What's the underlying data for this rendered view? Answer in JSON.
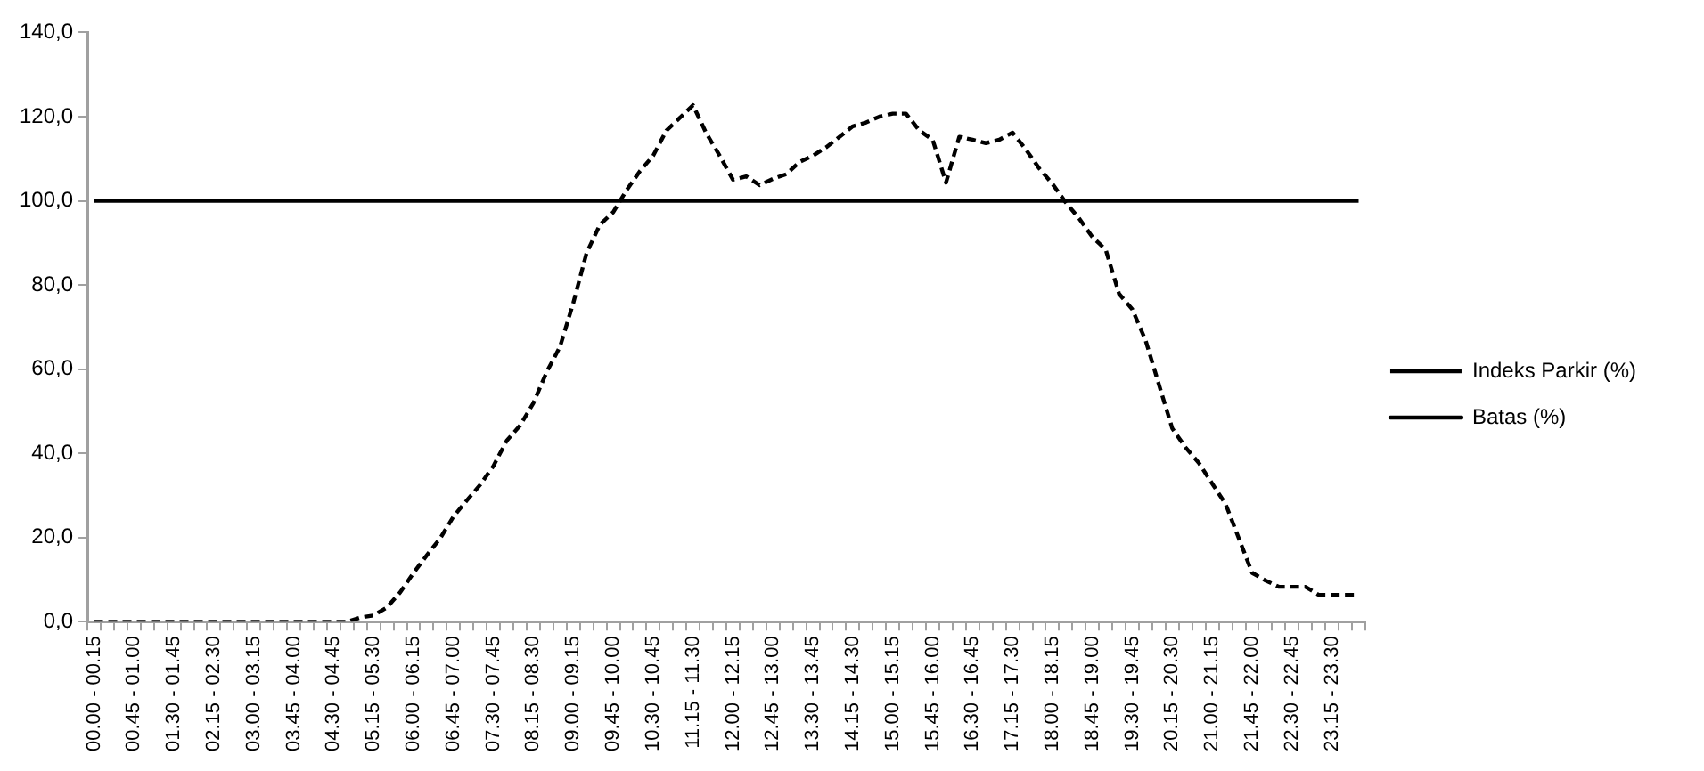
{
  "chart_data": {
    "type": "line",
    "categories": [
      "00.00 - 00.15",
      null,
      null,
      "00.45 - 01.00",
      null,
      null,
      "01.30 - 01.45",
      null,
      null,
      "02.15 - 02.30",
      null,
      null,
      "03.00 - 03.15",
      null,
      null,
      "03.45 - 04.00",
      null,
      null,
      "04.30 - 04.45",
      null,
      null,
      "05.15 - 05.30",
      null,
      null,
      "06.00 - 06.15",
      null,
      null,
      "06.45 - 07.00",
      null,
      null,
      "07.30 - 07.45",
      null,
      null,
      "08.15 - 08.30",
      null,
      null,
      "09.00 - 09.15",
      null,
      null,
      "09.45 - 10.00",
      null,
      null,
      "10.30 - 10.45",
      null,
      null,
      "11.15 - 11.30",
      null,
      null,
      "12.00 - 12.15",
      null,
      null,
      "12.45 - 13.00",
      null,
      null,
      "13.30 - 13.45",
      null,
      null,
      "14.15 - 14.30",
      null,
      null,
      "15.00 - 15.15",
      null,
      null,
      "15.45 - 16.00",
      null,
      null,
      "16.30 - 16.45",
      null,
      null,
      "17.15 - 17.30",
      null,
      null,
      "18.00 - 18.15",
      null,
      null,
      "18.45 - 19.00",
      null,
      null,
      "19.30 - 19.45",
      null,
      null,
      "20.15 - 20.30",
      null,
      null,
      "21.00 - 21.15",
      null,
      null,
      "21.45 - 22.00",
      null,
      null,
      "22.30 - 22.45",
      null,
      null,
      "23.15 - 23.30",
      null,
      null
    ],
    "series": [
      {
        "name": "Indeks Parkir (%)",
        "color": "#000000",
        "line_style": "dashed",
        "values": [
          0,
          0,
          0,
          0,
          0,
          0,
          0,
          0,
          0,
          0,
          0,
          0,
          0,
          0,
          0,
          0,
          0,
          0,
          0,
          0,
          1,
          1.5,
          3.4,
          7,
          11.6,
          15.8,
          19.8,
          25,
          28.8,
          32.5,
          37,
          43,
          46.6,
          51.9,
          59.3,
          65.3,
          75.7,
          87.6,
          94.3,
          97.3,
          102.5,
          107,
          110.7,
          116.7,
          119.7,
          122.7,
          116,
          110.7,
          105,
          105.8,
          103.7,
          105.2,
          106.3,
          109.2,
          110.7,
          112.7,
          115.2,
          117.7,
          118.6,
          120,
          120.7,
          120.7,
          116.7,
          114.5,
          104.3,
          115.2,
          114.5,
          113.7,
          114.5,
          116.2,
          112.2,
          107.7,
          104,
          99.6,
          95.8,
          91.4,
          88.4,
          77.9,
          74.2,
          66.8,
          56.3,
          45.9,
          41.4,
          37.7,
          32.8,
          28,
          19.8,
          11.6,
          9.8,
          8.3,
          8.3,
          8.3,
          6.4,
          6.4,
          6.4,
          6.4
        ]
      },
      {
        "name": "Batas (%)",
        "color": "#000000",
        "line_style": "solid",
        "values": [
          100,
          100,
          100,
          100,
          100,
          100,
          100,
          100,
          100,
          100,
          100,
          100,
          100,
          100,
          100,
          100,
          100,
          100,
          100,
          100,
          100,
          100,
          100,
          100,
          100,
          100,
          100,
          100,
          100,
          100,
          100,
          100,
          100,
          100,
          100,
          100,
          100,
          100,
          100,
          100,
          100,
          100,
          100,
          100,
          100,
          100,
          100,
          100,
          100,
          100,
          100,
          100,
          100,
          100,
          100,
          100,
          100,
          100,
          100,
          100,
          100,
          100,
          100,
          100,
          100,
          100,
          100,
          100,
          100,
          100,
          100,
          100,
          100,
          100,
          100,
          100,
          100,
          100,
          100,
          100,
          100,
          100,
          100,
          100,
          100,
          100,
          100,
          100,
          100,
          100,
          100,
          100,
          100,
          100,
          100,
          100
        ]
      }
    ],
    "ylim": [
      0,
      140
    ],
    "yticks": [
      {
        "value": 0,
        "label": "0,0"
      },
      {
        "value": 20,
        "label": "20,0"
      },
      {
        "value": 40,
        "label": "40,0"
      },
      {
        "value": 60,
        "label": "60,0"
      },
      {
        "value": 80,
        "label": "80,0"
      },
      {
        "value": 100,
        "label": "100,0"
      },
      {
        "value": 120,
        "label": "120,0"
      },
      {
        "value": 140,
        "label": "140,0"
      }
    ],
    "grid": false,
    "legend": "right",
    "marker": "none"
  }
}
